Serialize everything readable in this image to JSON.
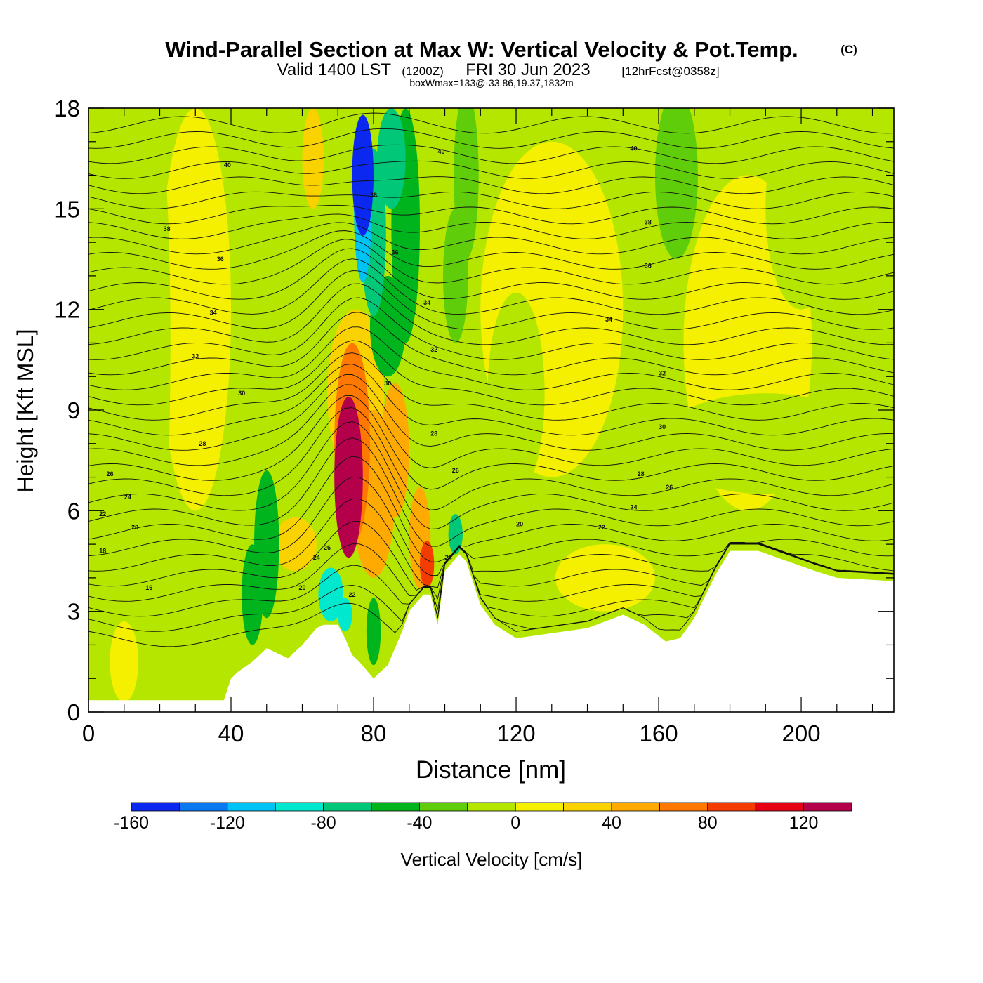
{
  "chart_data": {
    "type": "heatmap",
    "title": "Wind-Parallel Section at Max W: Vertical Velocity & Pot.Temp.",
    "title_mark": "(C)",
    "subtitle": {
      "valid": "Valid 1400 LST",
      "utc": "(1200Z)",
      "date": "FRI 30 Jun 2023",
      "fcst": "[12hrFcst@0358z]"
    },
    "annotation": "boxWmax=133@-33.86,19.37,1832m",
    "xlabel": "Distance [nm]",
    "ylabel": "Height [Kft MSL]",
    "xlim": [
      0,
      226
    ],
    "ylim": [
      0,
      18
    ],
    "x_ticks": [
      0,
      40,
      80,
      120,
      160,
      200
    ],
    "y_ticks": [
      0,
      3,
      6,
      9,
      12,
      15,
      18
    ],
    "colorbar": {
      "label": "Vertical Velocity [cm/s]",
      "ticks": [
        -160,
        -120,
        -80,
        -40,
        0,
        40,
        80,
        120
      ],
      "bounds": [
        -160,
        140
      ],
      "colors": [
        "#0a28f0",
        "#0a78f0",
        "#00c3f5",
        "#00e8cd",
        "#00c878",
        "#00b41e",
        "#5fcd0a",
        "#b4e600",
        "#f5f000",
        "#fad200",
        "#ffaa00",
        "#ff7800",
        "#f53c00",
        "#e60014",
        "#b4004b"
      ]
    },
    "terrain_profile": {
      "x": [
        0,
        38,
        40,
        42,
        46,
        50,
        56,
        60,
        64,
        66,
        70,
        72,
        74,
        76,
        80,
        84,
        88,
        90,
        94,
        96,
        98,
        100,
        104,
        106,
        110,
        114,
        120,
        140,
        150,
        156,
        162,
        166,
        170,
        176,
        180,
        188,
        196,
        204,
        210,
        226
      ],
      "kft": [
        0.35,
        0.35,
        1.0,
        1.2,
        1.5,
        1.9,
        1.6,
        2.0,
        2.5,
        2.6,
        2.6,
        2.2,
        1.7,
        1.5,
        1.0,
        1.4,
        2.4,
        3.0,
        3.5,
        3.5,
        2.6,
        4.2,
        4.7,
        4.5,
        3.2,
        2.6,
        2.2,
        2.5,
        2.9,
        2.6,
        2.1,
        2.2,
        2.8,
        4.1,
        4.8,
        4.8,
        4.5,
        4.2,
        4.0,
        3.9
      ]
    },
    "theta_contour_labels": [
      "16",
      "18",
      "20",
      "22",
      "24",
      "26",
      "28",
      "30",
      "32",
      "34",
      "36",
      "38",
      "40"
    ],
    "theta_contour_label_marks": [
      {
        "text": "40",
        "x": 39,
        "y": 16.3
      },
      {
        "text": "38",
        "x": 22,
        "y": 14.4
      },
      {
        "text": "36",
        "x": 37,
        "y": 13.5
      },
      {
        "text": "34",
        "x": 35,
        "y": 11.9
      },
      {
        "text": "32",
        "x": 30,
        "y": 10.6
      },
      {
        "text": "30",
        "x": 43,
        "y": 9.5
      },
      {
        "text": "28",
        "x": 32,
        "y": 8.0
      },
      {
        "text": "26",
        "x": 6,
        "y": 7.1
      },
      {
        "text": "24",
        "x": 11,
        "y": 6.4
      },
      {
        "text": "22",
        "x": 4,
        "y": 5.9
      },
      {
        "text": "20",
        "x": 13,
        "y": 5.5
      },
      {
        "text": "18",
        "x": 4,
        "y": 4.8
      },
      {
        "text": "16",
        "x": 17,
        "y": 3.7
      },
      {
        "text": "38",
        "x": 80,
        "y": 15.4
      },
      {
        "text": "36",
        "x": 86,
        "y": 13.7
      },
      {
        "text": "40",
        "x": 99,
        "y": 16.7
      },
      {
        "text": "34",
        "x": 95,
        "y": 12.2
      },
      {
        "text": "32",
        "x": 97,
        "y": 10.8
      },
      {
        "text": "30",
        "x": 84,
        "y": 9.8
      },
      {
        "text": "28",
        "x": 97,
        "y": 8.3
      },
      {
        "text": "26",
        "x": 103,
        "y": 7.2
      },
      {
        "text": "40",
        "x": 153,
        "y": 16.8
      },
      {
        "text": "38",
        "x": 157,
        "y": 14.6
      },
      {
        "text": "36",
        "x": 157,
        "y": 13.3
      },
      {
        "text": "34",
        "x": 146,
        "y": 11.7
      },
      {
        "text": "32",
        "x": 161,
        "y": 10.1
      },
      {
        "text": "30",
        "x": 161,
        "y": 8.5
      },
      {
        "text": "28",
        "x": 155,
        "y": 7.1
      },
      {
        "text": "26",
        "x": 163,
        "y": 6.7
      },
      {
        "text": "24",
        "x": 153,
        "y": 6.1
      },
      {
        "text": "22",
        "x": 144,
        "y": 5.5
      },
      {
        "text": "20",
        "x": 121,
        "y": 5.6
      },
      {
        "text": "24",
        "x": 64,
        "y": 4.6
      },
      {
        "text": "26",
        "x": 67,
        "y": 4.9
      },
      {
        "text": "20",
        "x": 60,
        "y": 3.7
      },
      {
        "text": "22",
        "x": 74,
        "y": 3.5
      },
      {
        "text": "24",
        "x": 101,
        "y": 4.6
      }
    ],
    "w_blobs": [
      {
        "x": 73,
        "y": 7.0,
        "rx": 4.0,
        "ry": 2.4,
        "w": 135
      },
      {
        "x": 73,
        "y": 7.2,
        "rx": 3.0,
        "ry": 1.8,
        "w": 110
      },
      {
        "x": 95,
        "y": 4.4,
        "rx": 2.0,
        "ry": 0.7,
        "w": 95
      },
      {
        "x": 74,
        "y": 8.0,
        "rx": 5.0,
        "ry": 3.0,
        "w": 75
      },
      {
        "x": 80,
        "y": 6.5,
        "rx": 6.0,
        "ry": 2.5,
        "w": 55
      },
      {
        "x": 86,
        "y": 7.8,
        "rx": 4.0,
        "ry": 2.0,
        "w": 40
      },
      {
        "x": 93,
        "y": 5.2,
        "rx": 3.0,
        "ry": 1.5,
        "w": 45
      },
      {
        "x": 75,
        "y": 9.5,
        "rx": 8.0,
        "ry": 2.5,
        "w": 30
      },
      {
        "x": 63,
        "y": 16.5,
        "rx": 3.0,
        "ry": 1.5,
        "w": 25
      },
      {
        "x": 58,
        "y": 5.0,
        "rx": 6.0,
        "ry": 0.8,
        "w": 20
      },
      {
        "x": 77,
        "y": 16.0,
        "rx": 3.0,
        "ry": 1.8,
        "w": -150
      },
      {
        "x": 77,
        "y": 15.0,
        "rx": 2.5,
        "ry": 2.2,
        "w": -110
      },
      {
        "x": 80,
        "y": 14.3,
        "rx": 3.5,
        "ry": 2.5,
        "w": -80
      },
      {
        "x": 85,
        "y": 16.5,
        "rx": 4.0,
        "ry": 1.5,
        "w": -70
      },
      {
        "x": 89,
        "y": 14.5,
        "rx": 4.0,
        "ry": 3.5,
        "w": -45
      },
      {
        "x": 106,
        "y": 16.0,
        "rx": 3.5,
        "ry": 2.5,
        "w": -40
      },
      {
        "x": 103,
        "y": 13.0,
        "rx": 3.5,
        "ry": 2.0,
        "w": -30
      },
      {
        "x": 84,
        "y": 11.5,
        "rx": 5.0,
        "ry": 1.5,
        "w": -50
      },
      {
        "x": 50,
        "y": 5.0,
        "rx": 3.5,
        "ry": 2.2,
        "w": -50
      },
      {
        "x": 46,
        "y": 3.5,
        "rx": 3.0,
        "ry": 1.5,
        "w": -45
      },
      {
        "x": 68,
        "y": 3.5,
        "rx": 3.5,
        "ry": 0.8,
        "w": -90
      },
      {
        "x": 72,
        "y": 2.9,
        "rx": 2.0,
        "ry": 0.5,
        "w": -100
      },
      {
        "x": 80,
        "y": 2.4,
        "rx": 2.0,
        "ry": 1.0,
        "w": -45
      },
      {
        "x": 103,
        "y": 5.3,
        "rx": 2.0,
        "ry": 0.6,
        "w": -80
      },
      {
        "x": 45,
        "y": 12.5,
        "rx": 3.0,
        "ry": 5.0,
        "w": -20
      },
      {
        "x": 20,
        "y": 11.0,
        "rx": 3.0,
        "ry": 6.0,
        "w": -20
      },
      {
        "x": 165,
        "y": 16.0,
        "rx": 6.0,
        "ry": 2.5,
        "w": -30
      },
      {
        "x": 200,
        "y": 15.0,
        "rx": 10.0,
        "ry": 3.0,
        "w": -15
      },
      {
        "x": 190,
        "y": 8.0,
        "rx": 30.0,
        "ry": 1.5,
        "w": -15
      },
      {
        "x": 120,
        "y": 9.5,
        "rx": 8.0,
        "ry": 3.0,
        "w": -12
      },
      {
        "x": 5,
        "y": 10.0,
        "rx": 4.0,
        "ry": 8.0,
        "w": -15
      },
      {
        "x": 10,
        "y": 1.5,
        "rx": 4.0,
        "ry": 1.2,
        "w": 5
      },
      {
        "x": 145,
        "y": 4.0,
        "rx": 14.0,
        "ry": 1.0,
        "w": 8
      },
      {
        "x": 130,
        "y": 12.0,
        "rx": 20.0,
        "ry": 5.0,
        "w": 6
      },
      {
        "x": 185,
        "y": 11.0,
        "rx": 18.0,
        "ry": 5.0,
        "w": 4
      },
      {
        "x": 30,
        "y": 12.0,
        "rx": 10.0,
        "ry": 6.0,
        "w": 4
      },
      {
        "x": 215,
        "y": 3.5,
        "rx": 10.0,
        "ry": 0.5,
        "w": -12
      }
    ],
    "background_w": -8
  }
}
